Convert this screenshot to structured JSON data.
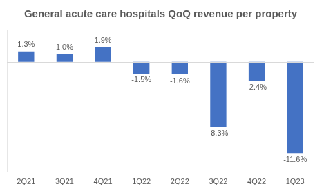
{
  "chart_data": {
    "type": "bar",
    "title": "General acute care hospitals QoQ revenue per property",
    "categories": [
      "2Q21",
      "3Q21",
      "4Q21",
      "1Q22",
      "2Q22",
      "3Q22",
      "4Q22",
      "1Q23"
    ],
    "values": [
      1.3,
      1.0,
      1.9,
      -1.5,
      -1.6,
      -8.3,
      -2.4,
      -11.6
    ],
    "value_labels": [
      "1.3%",
      "1.0%",
      "1.9%",
      "-1.5%",
      "-1.6%",
      "-8.3%",
      "-2.4%",
      "-11.6%"
    ],
    "color": "#4472c4",
    "ylim": [
      -14,
      4
    ],
    "grid": false,
    "data_labels": true,
    "tick_labels": "x"
  }
}
